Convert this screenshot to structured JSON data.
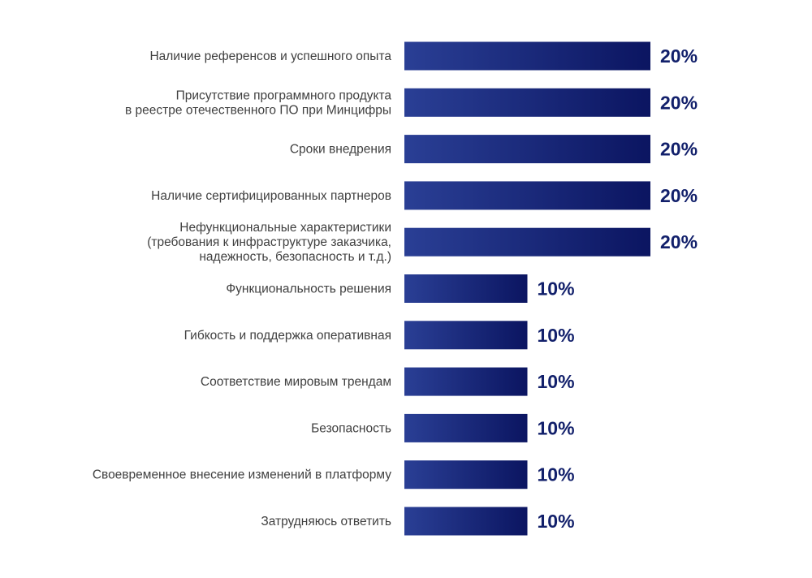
{
  "colors": {
    "bar_light": "#2a3f95",
    "bar_dark": "#0b1561",
    "value_text": "#12206b",
    "label_text": "#404040"
  },
  "chart_data": {
    "type": "bar",
    "orientation": "horizontal",
    "title": "",
    "xlabel": "",
    "ylabel": "",
    "xlim": [
      0,
      20
    ],
    "grid": false,
    "categories": [
      [
        "Наличие референсов и успешного опыта"
      ],
      [
        "Присутствие программного продукта",
        "в реестре отечественного ПО при Минцифры"
      ],
      [
        "Сроки внедрения"
      ],
      [
        "Наличие сертифицированных партнеров"
      ],
      [
        "Нефункциональные характеристики",
        "(требования к инфраструктуре заказчика,",
        "надежность, безопасность и т.д.)"
      ],
      [
        "Функциональность решения"
      ],
      [
        "Гибкость и поддержка оперативная"
      ],
      [
        "Соответствие мировым трендам"
      ],
      [
        "Безопасность"
      ],
      [
        "Своевременное внесение изменений в платформу"
      ],
      [
        "Затрудняюсь ответить"
      ]
    ],
    "values": [
      20,
      20,
      20,
      20,
      20,
      10,
      10,
      10,
      10,
      10,
      10
    ],
    "value_labels": [
      "20%",
      "20%",
      "20%",
      "20%",
      "20%",
      "10%",
      "10%",
      "10%",
      "10%",
      "10%",
      "10%"
    ]
  }
}
